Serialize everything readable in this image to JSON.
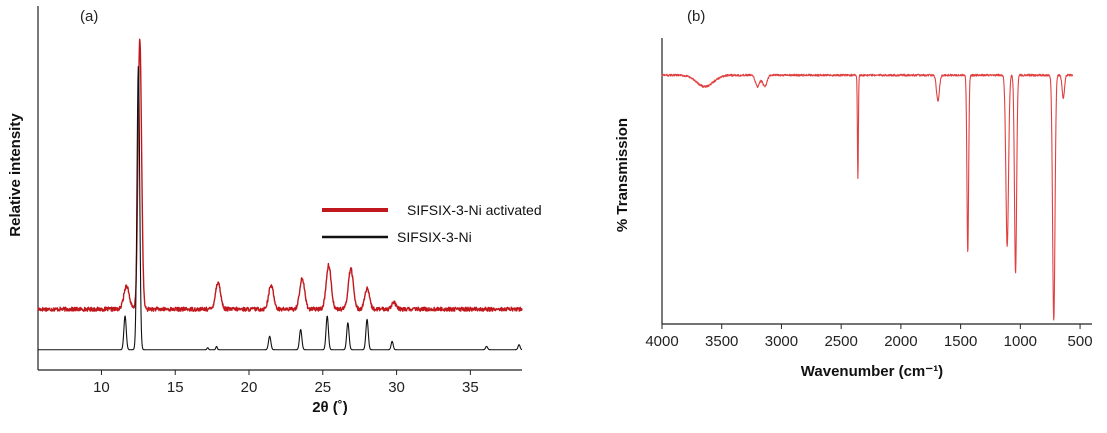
{
  "chart_data": [
    {
      "type": "line",
      "panel_label": "(a)",
      "xlabel": "2θ (˚)",
      "ylabel": "Relative intensity",
      "xlim": [
        5.7,
        38.5
      ],
      "ylim": [
        -0.06,
        1.0
      ],
      "x_ticks": [
        "10",
        "15",
        "20",
        "25",
        "30",
        "35"
      ],
      "y_ticks_shown": false,
      "legend_position": "center-right",
      "colors": {
        "activated": "#c0181c",
        "pristine": "#111111"
      },
      "series": [
        {
          "name": "SIFSIX-3-Ni activated",
          "color": "#c0181c",
          "baseline": 0.12,
          "noise": 0.006,
          "peaks": [
            {
              "x": 11.7,
              "height": 0.07,
              "width": 0.18
            },
            {
              "x": 12.6,
              "height": 0.8,
              "width": 0.12
            },
            {
              "x": 17.9,
              "height": 0.08,
              "width": 0.17
            },
            {
              "x": 21.5,
              "height": 0.07,
              "width": 0.17
            },
            {
              "x": 23.6,
              "height": 0.09,
              "width": 0.17
            },
            {
              "x": 25.4,
              "height": 0.13,
              "width": 0.17
            },
            {
              "x": 26.9,
              "height": 0.12,
              "width": 0.17
            },
            {
              "x": 28.0,
              "height": 0.06,
              "width": 0.16
            },
            {
              "x": 29.8,
              "height": 0.02,
              "width": 0.15
            }
          ]
        },
        {
          "name": "SIFSIX-3-Ni",
          "color": "#111111",
          "baseline": 0.0,
          "noise": 0.0,
          "peaks": [
            {
              "x": 11.6,
              "height": 0.1,
              "width": 0.08
            },
            {
              "x": 12.5,
              "height": 0.84,
              "width": 0.09
            },
            {
              "x": 17.2,
              "height": 0.006,
              "width": 0.05
            },
            {
              "x": 17.8,
              "height": 0.01,
              "width": 0.05
            },
            {
              "x": 21.4,
              "height": 0.04,
              "width": 0.08
            },
            {
              "x": 23.5,
              "height": 0.06,
              "width": 0.08
            },
            {
              "x": 25.3,
              "height": 0.1,
              "width": 0.08
            },
            {
              "x": 26.7,
              "height": 0.08,
              "width": 0.08
            },
            {
              "x": 28.0,
              "height": 0.09,
              "width": 0.08
            },
            {
              "x": 29.7,
              "height": 0.025,
              "width": 0.07
            },
            {
              "x": 36.1,
              "height": 0.01,
              "width": 0.07
            },
            {
              "x": 38.3,
              "height": 0.015,
              "width": 0.07
            }
          ]
        }
      ]
    },
    {
      "type": "line",
      "panel_label": "(b)",
      "xlabel": "Wavenumber (cm⁻¹)",
      "ylabel": "% Transmission",
      "xlim": [
        4000,
        400
      ],
      "x_reversed": true,
      "ylim": [
        0,
        100
      ],
      "x_ticks": [
        "4000",
        "3500",
        "3000",
        "2500",
        "2000",
        "1500",
        "1000",
        "500"
      ],
      "y_ticks_shown": false,
      "color": "#e04040",
      "series": [
        {
          "name": "",
          "baseline": 87,
          "noise": 0.35,
          "dips": [
            {
              "x": 3640,
              "depth": 4,
              "width": 70
            },
            {
              "x": 3200,
              "depth": 4,
              "width": 18
            },
            {
              "x": 3140,
              "depth": 4,
              "width": 18
            },
            {
              "x": 2360,
              "depth": 36,
              "width": 4
            },
            {
              "x": 1690,
              "depth": 9,
              "width": 12
            },
            {
              "x": 1440,
              "depth": 62,
              "width": 7
            },
            {
              "x": 1110,
              "depth": 60,
              "width": 11
            },
            {
              "x": 1040,
              "depth": 69,
              "width": 9
            },
            {
              "x": 720,
              "depth": 86,
              "width": 10
            },
            {
              "x": 640,
              "depth": 8,
              "width": 10
            }
          ]
        }
      ]
    }
  ]
}
